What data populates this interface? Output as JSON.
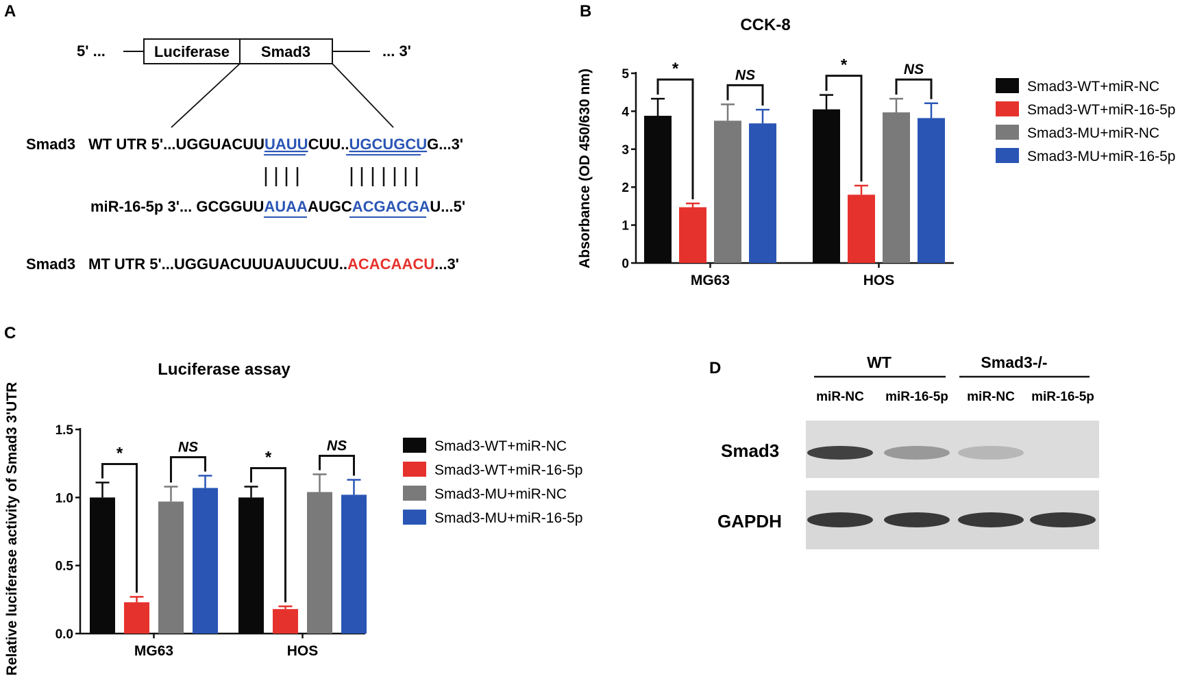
{
  "panel_a": {
    "letter": "A",
    "construct": {
      "left_end": "5' ...",
      "right_end": "... 3'",
      "box1": "Luciferase",
      "box2": "Smad3"
    },
    "wt": {
      "gene": "Smad3",
      "prefix": "WT UTR 5'...UGGUACUU",
      "site1": "UAUU",
      "mid": "CUU..",
      "site2": "UGCUGCU",
      "suffix": "G...3'"
    },
    "mir": {
      "prefix": "miR-16-5p 3'... GCGGUU",
      "site1": "AUAA",
      "mid": "AUGC",
      "site2": "ACGACGA",
      "suffix": "U...5'"
    },
    "mt": {
      "gene": "Smad3",
      "prefix": "MT UTR 5'...UGGUACUUUAUUCUU..",
      "mut": "ACACAACU",
      "suffix": "...3'"
    },
    "colors": {
      "site": "#2a55b5",
      "mutant": "#e6322d"
    }
  },
  "panel_b": {
    "letter": "B"
  },
  "panel_c": {
    "letter": "C"
  },
  "panel_d": {
    "letter": "D",
    "groups": [
      "WT",
      "Smad3-/-"
    ],
    "lanes": [
      "miR-NC",
      "miR-16-5p",
      "miR-NC",
      "miR-16-5p"
    ],
    "rows": [
      "Smad3",
      "GAPDH"
    ],
    "band_intensity": {
      "Smad3": [
        0.85,
        0.3,
        0.12,
        0.0
      ],
      "GAPDH": [
        0.9,
        0.9,
        0.9,
        0.9
      ]
    }
  },
  "legend": [
    "Smad3-WT+miR-NC",
    "Smad3-WT+miR-16-5p",
    "Smad3-MU+miR-NC",
    "Smad3-MU+miR-16-5p"
  ],
  "series_colors": [
    "#0a0a0a",
    "#e6322d",
    "#7a7a7a",
    "#2a55b5"
  ],
  "chart_data": [
    {
      "type": "bar",
      "title": "CCK-8",
      "ylabel": "Absorbance (OD 450/630 nm)",
      "categories": [
        "MG63",
        "HOS"
      ],
      "ylim": [
        0,
        5
      ],
      "yticks": [
        "0",
        "1",
        "2",
        "3",
        "4",
        "5"
      ],
      "series": [
        {
          "name": "Smad3-WT+miR-NC",
          "values": [
            3.88,
            4.05
          ],
          "errors": [
            0.45,
            0.38
          ]
        },
        {
          "name": "Smad3-WT+miR-16-5p",
          "values": [
            1.47,
            1.8
          ],
          "errors": [
            0.1,
            0.24
          ]
        },
        {
          "name": "Smad3-MU+miR-NC",
          "values": [
            3.75,
            3.97
          ],
          "errors": [
            0.43,
            0.36
          ]
        },
        {
          "name": "Smad3-MU+miR-16-5p",
          "values": [
            3.68,
            3.82
          ],
          "errors": [
            0.36,
            0.39
          ]
        }
      ],
      "significance": [
        {
          "category": 0,
          "pair": [
            0,
            1
          ],
          "label": "*"
        },
        {
          "category": 0,
          "pair": [
            2,
            3
          ],
          "label": "NS"
        },
        {
          "category": 1,
          "pair": [
            0,
            1
          ],
          "label": "*"
        },
        {
          "category": 1,
          "pair": [
            2,
            3
          ],
          "label": "NS"
        }
      ],
      "legend_position": "right"
    },
    {
      "type": "bar",
      "title": "Luciferase assay",
      "ylabel": "Relative luciferase activity of Smad3 3'UTR",
      "categories": [
        "MG63",
        "HOS"
      ],
      "ylim": [
        0,
        1.5
      ],
      "yticks": [
        "0.0",
        "0.5",
        "1.0",
        "1.5"
      ],
      "series": [
        {
          "name": "Smad3-WT+miR-NC",
          "values": [
            1.0,
            1.0
          ],
          "errors": [
            0.11,
            0.08
          ]
        },
        {
          "name": "Smad3-WT+miR-16-5p",
          "values": [
            0.23,
            0.18
          ],
          "errors": [
            0.04,
            0.02
          ]
        },
        {
          "name": "Smad3-MU+miR-NC",
          "values": [
            0.97,
            1.04
          ],
          "errors": [
            0.11,
            0.13
          ]
        },
        {
          "name": "Smad3-MU+miR-16-5p",
          "values": [
            1.07,
            1.02
          ],
          "errors": [
            0.09,
            0.11
          ]
        }
      ],
      "significance": [
        {
          "category": 0,
          "pair": [
            0,
            1
          ],
          "label": "*"
        },
        {
          "category": 0,
          "pair": [
            2,
            3
          ],
          "label": "NS"
        },
        {
          "category": 1,
          "pair": [
            0,
            1
          ],
          "label": "*"
        },
        {
          "category": 1,
          "pair": [
            2,
            3
          ],
          "label": "NS"
        }
      ],
      "legend_position": "right"
    }
  ]
}
